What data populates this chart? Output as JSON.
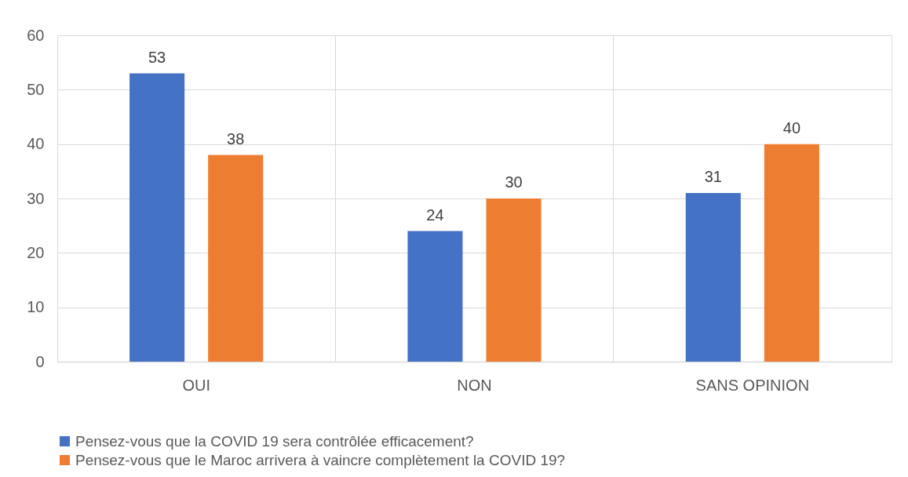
{
  "chart_data": {
    "type": "bar",
    "categories": [
      "OUI",
      "NON",
      "SANS OPINION"
    ],
    "series": [
      {
        "name": "Pensez-vous que la COVID 19 sera contrôlée efficacement?",
        "color": "#4472c4",
        "values": [
          53,
          24,
          31
        ]
      },
      {
        "name": "Pensez-vous que le Maroc arrivera à vaincre complètement la COVID 19?",
        "color": "#ed7d31",
        "values": [
          38,
          30,
          40
        ]
      }
    ],
    "ylim": [
      0,
      60
    ],
    "yticks": [
      0,
      10,
      20,
      30,
      40,
      50,
      60
    ],
    "grid": true,
    "legend": "bottom",
    "data_labels": true
  }
}
